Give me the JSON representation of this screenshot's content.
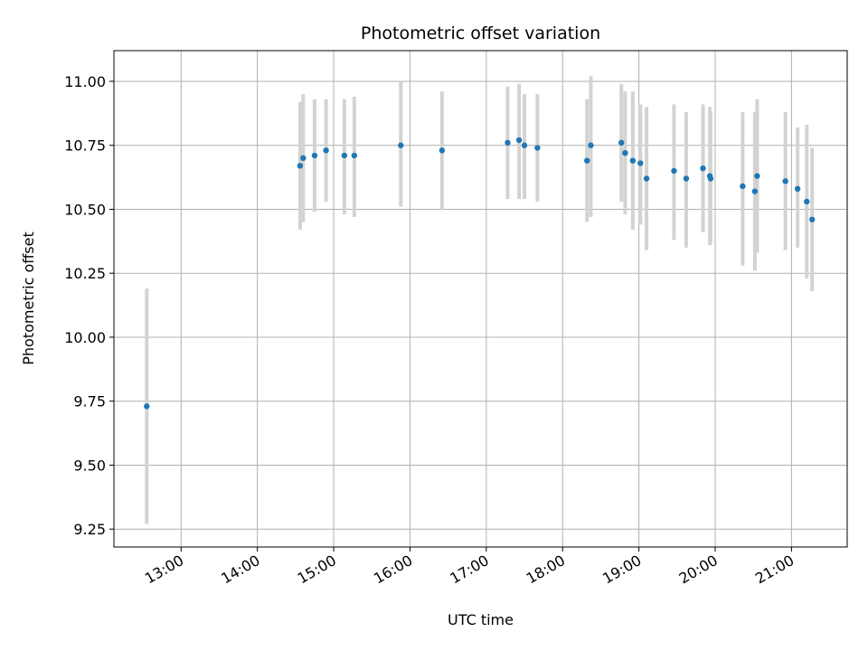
{
  "chart_data": {
    "type": "scatter",
    "title": "Photometric offset variation",
    "xlabel": "UTC time",
    "ylabel": "Photometric offset",
    "grid": true,
    "xlim_hours": [
      12.12,
      21.73
    ],
    "ylim": [
      9.18,
      11.12
    ],
    "x_ticks": [
      {
        "hour": 13,
        "label": "13:00"
      },
      {
        "hour": 14,
        "label": "14:00"
      },
      {
        "hour": 15,
        "label": "15:00"
      },
      {
        "hour": 16,
        "label": "16:00"
      },
      {
        "hour": 17,
        "label": "17:00"
      },
      {
        "hour": 18,
        "label": "18:00"
      },
      {
        "hour": 19,
        "label": "19:00"
      },
      {
        "hour": 20,
        "label": "20:00"
      },
      {
        "hour": 21,
        "label": "21:00"
      }
    ],
    "y_ticks": [
      {
        "value": 9.25,
        "label": "9.25"
      },
      {
        "value": 9.5,
        "label": "9.50"
      },
      {
        "value": 9.75,
        "label": "9.75"
      },
      {
        "value": 10.0,
        "label": "10.00"
      },
      {
        "value": 10.25,
        "label": "10.25"
      },
      {
        "value": 10.5,
        "label": "10.50"
      },
      {
        "value": 10.75,
        "label": "10.75"
      },
      {
        "value": 11.0,
        "label": "11.00"
      }
    ],
    "marker_color": "#1f77b4",
    "errorbar_color": "#d3d3d3",
    "points": [
      {
        "t": 12.55,
        "y": 9.73,
        "lo": 9.27,
        "hi": 10.19
      },
      {
        "t": 14.56,
        "y": 10.67,
        "lo": 10.42,
        "hi": 10.92
      },
      {
        "t": 14.6,
        "y": 10.7,
        "lo": 10.45,
        "hi": 10.95
      },
      {
        "t": 14.75,
        "y": 10.71,
        "lo": 10.49,
        "hi": 10.93
      },
      {
        "t": 14.9,
        "y": 10.73,
        "lo": 10.53,
        "hi": 10.93
      },
      {
        "t": 15.14,
        "y": 10.71,
        "lo": 10.48,
        "hi": 10.93
      },
      {
        "t": 15.27,
        "y": 10.71,
        "lo": 10.47,
        "hi": 10.94
      },
      {
        "t": 15.88,
        "y": 10.75,
        "lo": 10.51,
        "hi": 11.0
      },
      {
        "t": 16.42,
        "y": 10.73,
        "lo": 10.5,
        "hi": 10.96
      },
      {
        "t": 17.28,
        "y": 10.76,
        "lo": 10.54,
        "hi": 10.98
      },
      {
        "t": 17.43,
        "y": 10.77,
        "lo": 10.54,
        "hi": 10.99
      },
      {
        "t": 17.5,
        "y": 10.75,
        "lo": 10.54,
        "hi": 10.95
      },
      {
        "t": 17.67,
        "y": 10.74,
        "lo": 10.53,
        "hi": 10.95
      },
      {
        "t": 18.32,
        "y": 10.69,
        "lo": 10.45,
        "hi": 10.93
      },
      {
        "t": 18.37,
        "y": 10.75,
        "lo": 10.47,
        "hi": 11.02
      },
      {
        "t": 18.77,
        "y": 10.76,
        "lo": 10.53,
        "hi": 10.99
      },
      {
        "t": 18.82,
        "y": 10.72,
        "lo": 10.48,
        "hi": 10.96
      },
      {
        "t": 18.92,
        "y": 10.69,
        "lo": 10.42,
        "hi": 10.96
      },
      {
        "t": 19.02,
        "y": 10.68,
        "lo": 10.44,
        "hi": 10.91
      },
      {
        "t": 19.1,
        "y": 10.62,
        "lo": 10.34,
        "hi": 10.9
      },
      {
        "t": 19.46,
        "y": 10.65,
        "lo": 10.38,
        "hi": 10.91
      },
      {
        "t": 19.62,
        "y": 10.62,
        "lo": 10.35,
        "hi": 10.88
      },
      {
        "t": 19.84,
        "y": 10.66,
        "lo": 10.41,
        "hi": 10.91
      },
      {
        "t": 19.93,
        "y": 10.63,
        "lo": 10.36,
        "hi": 10.9
      },
      {
        "t": 19.94,
        "y": 10.62,
        "lo": 10.37,
        "hi": 10.88
      },
      {
        "t": 20.36,
        "y": 10.59,
        "lo": 10.28,
        "hi": 10.88
      },
      {
        "t": 20.52,
        "y": 10.57,
        "lo": 10.26,
        "hi": 10.88
      },
      {
        "t": 20.55,
        "y": 10.63,
        "lo": 10.33,
        "hi": 10.93
      },
      {
        "t": 20.92,
        "y": 10.61,
        "lo": 10.34,
        "hi": 10.88
      },
      {
        "t": 21.08,
        "y": 10.58,
        "lo": 10.35,
        "hi": 10.82
      },
      {
        "t": 21.2,
        "y": 10.53,
        "lo": 10.23,
        "hi": 10.83
      },
      {
        "t": 21.27,
        "y": 10.46,
        "lo": 10.18,
        "hi": 10.74
      }
    ]
  }
}
